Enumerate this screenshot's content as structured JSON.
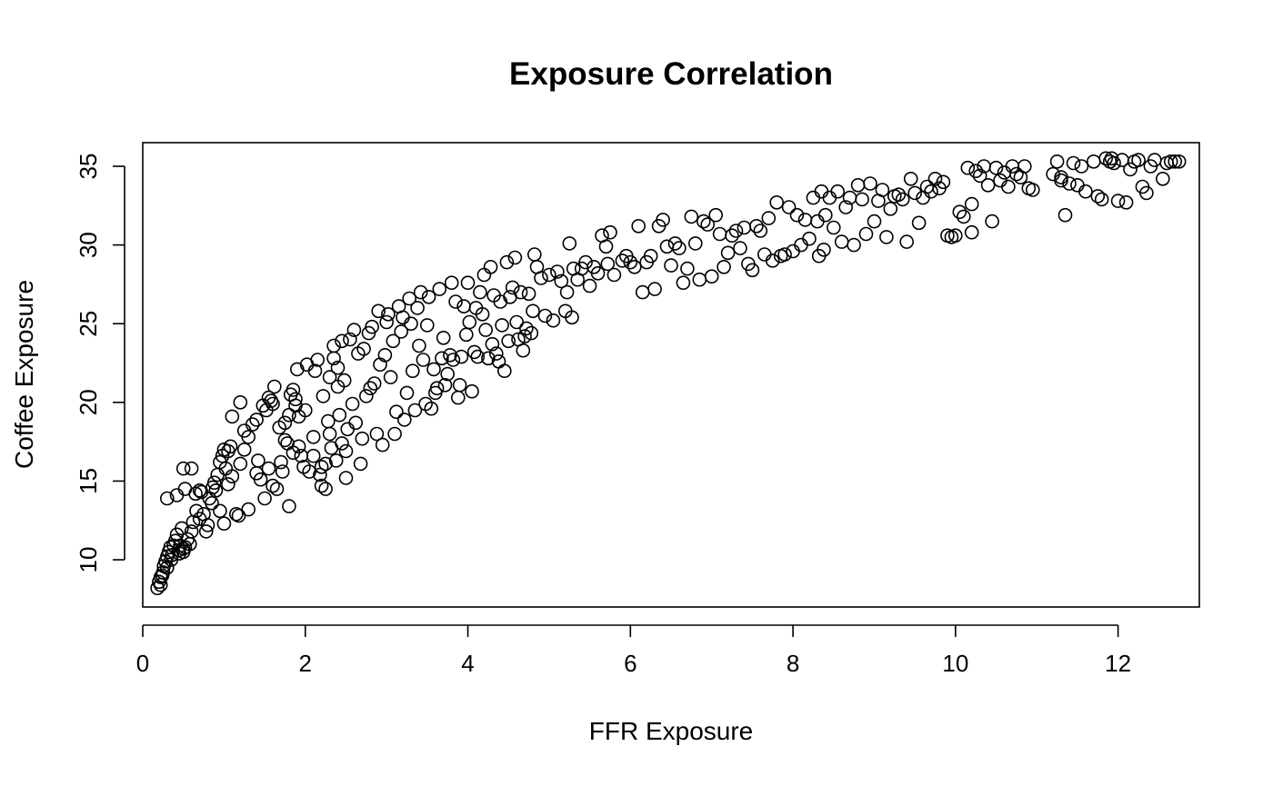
{
  "chart_data": {
    "type": "scatter",
    "title": "Exposure Correlation",
    "xlabel": "FFR Exposure",
    "ylabel": "Coffee Exposure",
    "xlim": [
      0,
      13
    ],
    "ylim": [
      7,
      36.5
    ],
    "xticks": [
      0,
      2,
      4,
      6,
      8,
      10,
      12
    ],
    "yticks": [
      10,
      15,
      20,
      25,
      30,
      35
    ],
    "xtick_labels": [
      "0",
      "2",
      "4",
      "6",
      "8",
      "10",
      "12"
    ],
    "ytick_labels": [
      "10",
      "15",
      "20",
      "25",
      "30",
      "35"
    ],
    "grid": false,
    "legend": "none",
    "marker": "open-circle",
    "points": [
      [
        0.18,
        8.2
      ],
      [
        0.2,
        8.6
      ],
      [
        0.22,
        8.9
      ],
      [
        0.25,
        9.2
      ],
      [
        0.26,
        9.6
      ],
      [
        0.28,
        9.9
      ],
      [
        0.3,
        10.2
      ],
      [
        0.32,
        10.5
      ],
      [
        0.34,
        10.8
      ],
      [
        0.36,
        10.3
      ],
      [
        0.38,
        10.9
      ],
      [
        0.4,
        11.2
      ],
      [
        0.42,
        11.6
      ],
      [
        0.44,
        10.6
      ],
      [
        0.46,
        10.9
      ],
      [
        0.48,
        12.0
      ],
      [
        0.5,
        10.5
      ],
      [
        0.52,
        10.8
      ],
      [
        0.55,
        11.3
      ],
      [
        0.58,
        11.0
      ],
      [
        0.22,
        8.4
      ],
      [
        0.24,
        9.0
      ],
      [
        0.3,
        9.5
      ],
      [
        0.35,
        10.0
      ],
      [
        0.45,
        10.4
      ],
      [
        0.5,
        10.7
      ],
      [
        0.6,
        11.8
      ],
      [
        0.62,
        12.4
      ],
      [
        0.66,
        13.1
      ],
      [
        0.7,
        12.6
      ],
      [
        0.72,
        14.3
      ],
      [
        0.75,
        12.9
      ],
      [
        0.78,
        11.8
      ],
      [
        0.8,
        12.2
      ],
      [
        0.85,
        13.6
      ],
      [
        0.88,
        14.9
      ],
      [
        0.9,
        14.4
      ],
      [
        0.92,
        15.4
      ],
      [
        0.95,
        16.2
      ],
      [
        0.98,
        16.6
      ],
      [
        1.0,
        17.0
      ],
      [
        1.02,
        15.8
      ],
      [
        1.05,
        16.9
      ],
      [
        1.08,
        17.2
      ],
      [
        1.1,
        19.1
      ],
      [
        1.15,
        12.9
      ],
      [
        1.18,
        12.8
      ],
      [
        1.2,
        20.0
      ],
      [
        1.25,
        18.2
      ],
      [
        1.3,
        13.2
      ],
      [
        0.3,
        13.9
      ],
      [
        0.42,
        14.1
      ],
      [
        0.5,
        15.8
      ],
      [
        0.52,
        14.5
      ],
      [
        0.6,
        15.8
      ],
      [
        0.65,
        14.2
      ],
      [
        0.7,
        14.4
      ],
      [
        0.82,
        13.9
      ],
      [
        0.86,
        14.6
      ],
      [
        0.95,
        13.1
      ],
      [
        1.0,
        12.3
      ],
      [
        1.05,
        14.8
      ],
      [
        1.1,
        15.3
      ],
      [
        1.2,
        16.1
      ],
      [
        1.25,
        17.0
      ],
      [
        1.3,
        17.8
      ],
      [
        1.35,
        18.6
      ],
      [
        1.4,
        15.5
      ],
      [
        1.42,
        16.3
      ],
      [
        1.45,
        15.1
      ],
      [
        1.5,
        13.9
      ],
      [
        1.52,
        19.5
      ],
      [
        1.55,
        15.8
      ],
      [
        1.58,
        20.1
      ],
      [
        1.6,
        19.9
      ],
      [
        1.62,
        21.0
      ],
      [
        1.65,
        14.5
      ],
      [
        1.7,
        16.2
      ],
      [
        1.72,
        15.6
      ],
      [
        1.75,
        18.7
      ],
      [
        1.78,
        17.4
      ],
      [
        1.8,
        19.2
      ],
      [
        1.82,
        20.5
      ],
      [
        1.85,
        20.8
      ],
      [
        1.88,
        19.8
      ],
      [
        1.9,
        22.1
      ],
      [
        1.92,
        17.2
      ],
      [
        1.95,
        16.6
      ],
      [
        1.98,
        15.9
      ],
      [
        2.0,
        19.5
      ],
      [
        1.4,
        18.9
      ],
      [
        1.48,
        19.8
      ],
      [
        1.55,
        20.3
      ],
      [
        1.6,
        14.7
      ],
      [
        1.68,
        18.4
      ],
      [
        1.75,
        17.6
      ],
      [
        1.8,
        13.4
      ],
      [
        1.85,
        16.8
      ],
      [
        1.88,
        20.2
      ],
      [
        1.92,
        19.1
      ],
      [
        2.02,
        22.4
      ],
      [
        2.05,
        15.6
      ],
      [
        2.1,
        17.8
      ],
      [
        2.12,
        22.0
      ],
      [
        2.15,
        22.7
      ],
      [
        2.18,
        15.4
      ],
      [
        2.2,
        14.7
      ],
      [
        2.22,
        20.4
      ],
      [
        2.25,
        16.1
      ],
      [
        2.28,
        18.8
      ],
      [
        2.3,
        21.6
      ],
      [
        2.32,
        17.1
      ],
      [
        2.35,
        23.6
      ],
      [
        2.38,
        16.3
      ],
      [
        2.4,
        22.2
      ],
      [
        2.42,
        19.2
      ],
      [
        2.45,
        23.9
      ],
      [
        2.48,
        21.4
      ],
      [
        2.5,
        15.2
      ],
      [
        2.52,
        18.3
      ],
      [
        2.1,
        16.6
      ],
      [
        2.2,
        15.9
      ],
      [
        2.25,
        14.5
      ],
      [
        2.3,
        18.0
      ],
      [
        2.35,
        22.8
      ],
      [
        2.4,
        21.0
      ],
      [
        2.45,
        17.4
      ],
      [
        2.5,
        16.9
      ],
      [
        2.55,
        24.0
      ],
      [
        2.58,
        19.9
      ],
      [
        2.6,
        24.6
      ],
      [
        2.62,
        18.7
      ],
      [
        2.65,
        23.1
      ],
      [
        2.68,
        16.1
      ],
      [
        2.7,
        17.7
      ],
      [
        2.72,
        23.4
      ],
      [
        2.75,
        20.4
      ],
      [
        2.78,
        24.4
      ],
      [
        2.8,
        20.9
      ],
      [
        2.82,
        24.8
      ],
      [
        2.85,
        21.2
      ],
      [
        2.88,
        18.0
      ],
      [
        2.9,
        25.8
      ],
      [
        2.92,
        22.4
      ],
      [
        2.95,
        17.3
      ],
      [
        2.98,
        23.0
      ],
      [
        3.0,
        25.1
      ],
      [
        3.02,
        25.6
      ],
      [
        3.05,
        21.6
      ],
      [
        3.08,
        23.9
      ],
      [
        3.1,
        18.0
      ],
      [
        3.12,
        19.4
      ],
      [
        3.15,
        26.1
      ],
      [
        3.18,
        24.5
      ],
      [
        3.2,
        25.4
      ],
      [
        3.22,
        18.9
      ],
      [
        3.25,
        20.6
      ],
      [
        3.28,
        26.6
      ],
      [
        3.3,
        25.0
      ],
      [
        3.32,
        22.0
      ],
      [
        3.35,
        19.5
      ],
      [
        3.38,
        26.0
      ],
      [
        3.4,
        23.6
      ],
      [
        3.42,
        27.0
      ],
      [
        3.45,
        22.7
      ],
      [
        3.48,
        19.9
      ],
      [
        3.5,
        24.9
      ],
      [
        3.52,
        26.7
      ],
      [
        3.55,
        19.6
      ],
      [
        3.58,
        22.1
      ],
      [
        3.6,
        20.6
      ],
      [
        3.62,
        20.9
      ],
      [
        3.65,
        27.2
      ],
      [
        3.68,
        22.8
      ],
      [
        3.7,
        24.1
      ],
      [
        3.72,
        21.1
      ],
      [
        3.75,
        21.8
      ],
      [
        3.78,
        23.0
      ],
      [
        3.8,
        27.6
      ],
      [
        3.82,
        22.7
      ],
      [
        3.85,
        26.4
      ],
      [
        3.88,
        20.3
      ],
      [
        3.9,
        21.1
      ],
      [
        3.92,
        22.9
      ],
      [
        3.95,
        26.1
      ],
      [
        3.98,
        24.3
      ],
      [
        4.0,
        27.6
      ],
      [
        4.02,
        25.1
      ],
      [
        4.05,
        20.7
      ],
      [
        4.08,
        23.2
      ],
      [
        4.1,
        26.0
      ],
      [
        4.12,
        22.9
      ],
      [
        4.15,
        27.0
      ],
      [
        4.18,
        25.6
      ],
      [
        4.2,
        28.1
      ],
      [
        4.22,
        24.6
      ],
      [
        4.25,
        22.8
      ],
      [
        4.28,
        28.6
      ],
      [
        4.3,
        23.7
      ],
      [
        4.32,
        26.8
      ],
      [
        4.35,
        23.1
      ],
      [
        4.38,
        22.6
      ],
      [
        4.4,
        26.4
      ],
      [
        4.42,
        24.9
      ],
      [
        4.45,
        22.0
      ],
      [
        4.48,
        28.9
      ],
      [
        4.5,
        23.9
      ],
      [
        4.52,
        26.7
      ],
      [
        4.55,
        27.3
      ],
      [
        4.58,
        29.2
      ],
      [
        4.6,
        25.1
      ],
      [
        4.62,
        24.0
      ],
      [
        4.65,
        27.0
      ],
      [
        4.68,
        23.3
      ],
      [
        4.7,
        24.2
      ],
      [
        4.72,
        24.7
      ],
      [
        4.75,
        26.9
      ],
      [
        4.78,
        24.4
      ],
      [
        4.8,
        25.8
      ],
      [
        4.82,
        29.4
      ],
      [
        4.85,
        28.6
      ],
      [
        4.9,
        27.9
      ],
      [
        4.95,
        25.5
      ],
      [
        5.0,
        28.1
      ],
      [
        5.05,
        25.2
      ],
      [
        5.1,
        28.3
      ],
      [
        5.15,
        27.7
      ],
      [
        5.2,
        25.8
      ],
      [
        5.22,
        27.0
      ],
      [
        5.25,
        30.1
      ],
      [
        5.28,
        25.4
      ],
      [
        5.3,
        28.5
      ],
      [
        5.35,
        27.8
      ],
      [
        5.4,
        28.5
      ],
      [
        5.45,
        28.9
      ],
      [
        5.5,
        27.4
      ],
      [
        5.55,
        28.6
      ],
      [
        5.6,
        28.2
      ],
      [
        5.65,
        30.6
      ],
      [
        5.7,
        29.9
      ],
      [
        5.72,
        28.8
      ],
      [
        5.75,
        30.8
      ],
      [
        5.8,
        28.1
      ],
      [
        5.9,
        29.0
      ],
      [
        5.95,
        29.3
      ],
      [
        6.0,
        28.9
      ],
      [
        6.05,
        28.6
      ],
      [
        6.1,
        31.2
      ],
      [
        6.15,
        27.0
      ],
      [
        6.2,
        28.9
      ],
      [
        6.25,
        29.3
      ],
      [
        6.3,
        27.2
      ],
      [
        6.35,
        31.2
      ],
      [
        6.4,
        31.6
      ],
      [
        6.45,
        29.9
      ],
      [
        6.5,
        28.7
      ],
      [
        6.55,
        30.1
      ],
      [
        6.6,
        29.8
      ],
      [
        6.65,
        27.6
      ],
      [
        6.7,
        28.5
      ],
      [
        6.75,
        31.8
      ],
      [
        6.8,
        30.1
      ],
      [
        6.85,
        27.8
      ],
      [
        6.9,
        31.5
      ],
      [
        6.95,
        31.3
      ],
      [
        7.0,
        28.0
      ],
      [
        7.05,
        31.9
      ],
      [
        7.1,
        30.7
      ],
      [
        7.15,
        28.6
      ],
      [
        7.2,
        29.5
      ],
      [
        7.25,
        30.6
      ],
      [
        7.3,
        30.9
      ],
      [
        7.35,
        29.8
      ],
      [
        7.4,
        31.1
      ],
      [
        7.45,
        28.8
      ],
      [
        7.5,
        28.4
      ],
      [
        7.55,
        31.2
      ],
      [
        7.6,
        30.9
      ],
      [
        7.65,
        29.4
      ],
      [
        7.7,
        31.7
      ],
      [
        7.75,
        29.0
      ],
      [
        7.8,
        32.7
      ],
      [
        7.85,
        29.3
      ],
      [
        7.9,
        29.4
      ],
      [
        7.95,
        32.4
      ],
      [
        8.0,
        29.6
      ],
      [
        8.05,
        31.9
      ],
      [
        8.1,
        30.0
      ],
      [
        8.15,
        31.6
      ],
      [
        8.2,
        30.4
      ],
      [
        8.25,
        33.0
      ],
      [
        8.3,
        31.5
      ],
      [
        8.32,
        29.3
      ],
      [
        8.35,
        33.4
      ],
      [
        8.38,
        29.7
      ],
      [
        8.4,
        31.9
      ],
      [
        8.45,
        33.0
      ],
      [
        8.5,
        31.1
      ],
      [
        8.55,
        33.4
      ],
      [
        8.6,
        30.2
      ],
      [
        8.65,
        32.4
      ],
      [
        8.7,
        33.0
      ],
      [
        8.75,
        30.0
      ],
      [
        8.8,
        33.8
      ],
      [
        8.85,
        32.9
      ],
      [
        8.9,
        30.7
      ],
      [
        8.95,
        33.9
      ],
      [
        9.0,
        31.5
      ],
      [
        9.05,
        32.8
      ],
      [
        9.1,
        33.5
      ],
      [
        9.15,
        30.5
      ],
      [
        9.2,
        32.3
      ],
      [
        9.25,
        33.1
      ],
      [
        9.3,
        33.2
      ],
      [
        9.35,
        32.9
      ],
      [
        9.4,
        30.2
      ],
      [
        9.45,
        34.2
      ],
      [
        9.5,
        33.3
      ],
      [
        9.55,
        31.4
      ],
      [
        9.6,
        33.0
      ],
      [
        9.65,
        33.7
      ],
      [
        9.7,
        33.4
      ],
      [
        9.75,
        34.2
      ],
      [
        9.8,
        33.6
      ],
      [
        9.85,
        34.0
      ],
      [
        9.9,
        30.6
      ],
      [
        9.95,
        30.5
      ],
      [
        10.0,
        30.6
      ],
      [
        10.05,
        32.1
      ],
      [
        10.1,
        31.8
      ],
      [
        10.15,
        34.9
      ],
      [
        10.2,
        32.6
      ],
      [
        10.25,
        34.7
      ],
      [
        10.3,
        34.4
      ],
      [
        10.35,
        35.0
      ],
      [
        10.4,
        33.8
      ],
      [
        10.45,
        31.5
      ],
      [
        10.5,
        34.9
      ],
      [
        10.55,
        34.1
      ],
      [
        10.6,
        34.6
      ],
      [
        10.65,
        33.7
      ],
      [
        10.7,
        35.0
      ],
      [
        10.75,
        34.5
      ],
      [
        10.8,
        34.3
      ],
      [
        10.85,
        35.0
      ],
      [
        10.9,
        33.6
      ],
      [
        10.95,
        33.5
      ],
      [
        11.2,
        34.5
      ],
      [
        11.25,
        35.3
      ],
      [
        11.3,
        34.1
      ],
      [
        11.35,
        31.9
      ],
      [
        11.4,
        33.9
      ],
      [
        11.45,
        35.2
      ],
      [
        11.5,
        33.8
      ],
      [
        11.55,
        35.0
      ],
      [
        11.6,
        33.4
      ],
      [
        11.7,
        35.3
      ],
      [
        11.75,
        33.1
      ],
      [
        11.8,
        32.9
      ],
      [
        11.85,
        35.5
      ],
      [
        11.9,
        35.3
      ],
      [
        11.92,
        35.5
      ],
      [
        11.95,
        35.2
      ],
      [
        12.0,
        32.8
      ],
      [
        12.05,
        35.4
      ],
      [
        12.1,
        32.7
      ],
      [
        12.15,
        34.8
      ],
      [
        12.2,
        35.3
      ],
      [
        12.25,
        35.4
      ],
      [
        12.3,
        33.7
      ],
      [
        12.35,
        33.3
      ],
      [
        12.4,
        35.0
      ],
      [
        12.45,
        35.4
      ],
      [
        12.55,
        34.2
      ],
      [
        12.6,
        35.2
      ],
      [
        12.65,
        35.3
      ],
      [
        12.7,
        35.3
      ],
      [
        12.75,
        35.3
      ],
      [
        10.2,
        30.8
      ],
      [
        11.3,
        34.3
      ]
    ]
  }
}
